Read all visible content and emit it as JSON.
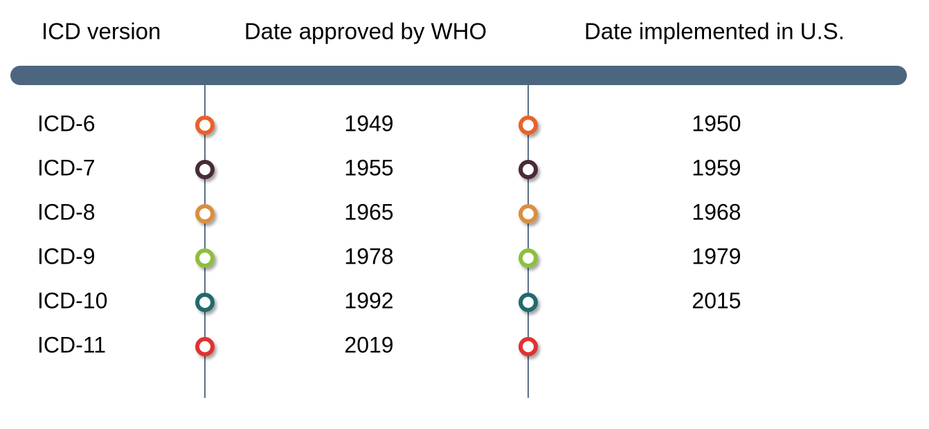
{
  "header": {
    "columns": [
      "ICD version",
      "Date approved by WHO",
      "Date implemented in U.S."
    ]
  },
  "table": {
    "rows": [
      {
        "version": "ICD-6",
        "who": 1949,
        "us": 1950,
        "color": "#e8622c"
      },
      {
        "version": "ICD-7",
        "who": 1955,
        "us": 1959,
        "color": "#4a2a38"
      },
      {
        "version": "ICD-8",
        "who": 1965,
        "us": 1968,
        "color": "#d98f3f"
      },
      {
        "version": "ICD-9",
        "who": 1978,
        "us": 1979,
        "color": "#8dbf3c"
      },
      {
        "version": "ICD-10",
        "who": 1992,
        "us": 2015,
        "color": "#236b6e"
      },
      {
        "version": "ICD-11",
        "who": 2019,
        "us": null,
        "color": "#e03030"
      }
    ]
  }
}
